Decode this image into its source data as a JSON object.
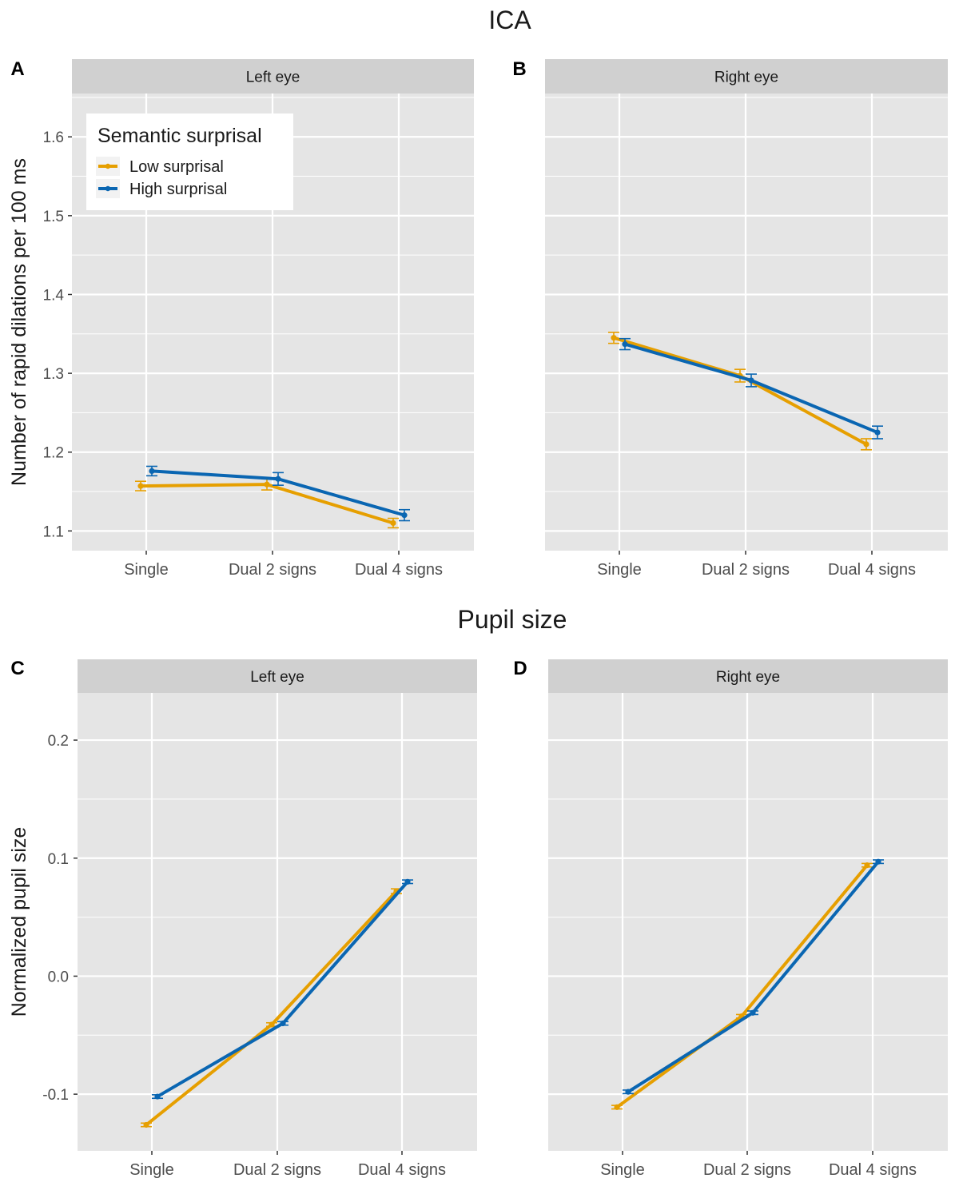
{
  "figure": {
    "top_section_title": "ICA",
    "bottom_section_title": "Pupil size",
    "colors": {
      "low": "#E69F00",
      "high": "#0A66B2",
      "panel_bg": "#E5E5E5",
      "strip_bg": "#D0D0D0",
      "grid": "#FFFFFF"
    }
  },
  "legend": {
    "title": "Semantic surprisal",
    "items": [
      "Low surprisal",
      "High surprisal"
    ]
  },
  "chart_data": [
    {
      "type": "line",
      "panel_label": "A",
      "section": "ICA",
      "strip": "Left eye",
      "categories": [
        "Single",
        "Dual 2 signs",
        "Dual 4 signs"
      ],
      "ylabel": "Number of rapid dilations per 100 ms",
      "ylim": [
        1.075,
        1.655
      ],
      "yticks": [
        1.1,
        1.2,
        1.3,
        1.4,
        1.5,
        1.6
      ],
      "ytick_labels": [
        "1.1",
        "1.2",
        "1.3",
        "1.4",
        "1.5",
        "1.6"
      ],
      "show_legend": true,
      "series": [
        {
          "name": "Low surprisal",
          "values": [
            1.157,
            1.159,
            1.11
          ],
          "errors": [
            0.006,
            0.007,
            0.006
          ]
        },
        {
          "name": "High surprisal",
          "values": [
            1.176,
            1.166,
            1.12
          ],
          "errors": [
            0.006,
            0.008,
            0.007
          ]
        }
      ]
    },
    {
      "type": "line",
      "panel_label": "B",
      "section": "ICA",
      "strip": "Right eye",
      "categories": [
        "Single",
        "Dual 2 signs",
        "Dual 4 signs"
      ],
      "ylabel": "",
      "ylim": [
        1.075,
        1.655
      ],
      "yticks": [
        1.1,
        1.2,
        1.3,
        1.4,
        1.5,
        1.6
      ],
      "ytick_labels": [],
      "show_legend": false,
      "series": [
        {
          "name": "Low surprisal",
          "values": [
            1.345,
            1.297,
            1.21
          ],
          "errors": [
            0.007,
            0.008,
            0.007
          ]
        },
        {
          "name": "High surprisal",
          "values": [
            1.337,
            1.291,
            1.225
          ],
          "errors": [
            0.007,
            0.008,
            0.008
          ]
        }
      ]
    },
    {
      "type": "line",
      "panel_label": "C",
      "section": "Pupil size",
      "strip": "Left eye",
      "categories": [
        "Single",
        "Dual 2 signs",
        "Dual 4 signs"
      ],
      "ylabel": "Normalized pupil size",
      "ylim": [
        -0.148,
        0.24
      ],
      "yticks": [
        -0.1,
        0.0,
        0.1,
        0.2
      ],
      "ytick_labels": [
        "-0.1",
        "0.0",
        "0.1",
        "0.2"
      ],
      "show_legend": false,
      "series": [
        {
          "name": "Low surprisal",
          "values": [
            -0.126,
            -0.041,
            0.072
          ],
          "errors": [
            0.0015,
            0.0015,
            0.002
          ]
        },
        {
          "name": "High surprisal",
          "values": [
            -0.102,
            -0.04,
            0.08
          ],
          "errors": [
            0.0015,
            0.0015,
            0.0015
          ]
        }
      ]
    },
    {
      "type": "line",
      "panel_label": "D",
      "section": "Pupil size",
      "strip": "Right eye",
      "categories": [
        "Single",
        "Dual 2 signs",
        "Dual 4 signs"
      ],
      "ylabel": "",
      "ylim": [
        -0.148,
        0.24
      ],
      "yticks": [
        -0.1,
        0.0,
        0.1,
        0.2
      ],
      "ytick_labels": [],
      "show_legend": false,
      "series": [
        {
          "name": "Low surprisal",
          "values": [
            -0.111,
            -0.034,
            0.094
          ],
          "errors": [
            0.0015,
            0.0015,
            0.0015
          ]
        },
        {
          "name": "High surprisal",
          "values": [
            -0.098,
            -0.031,
            0.097
          ],
          "errors": [
            0.0015,
            0.0015,
            0.0015
          ]
        }
      ]
    }
  ]
}
